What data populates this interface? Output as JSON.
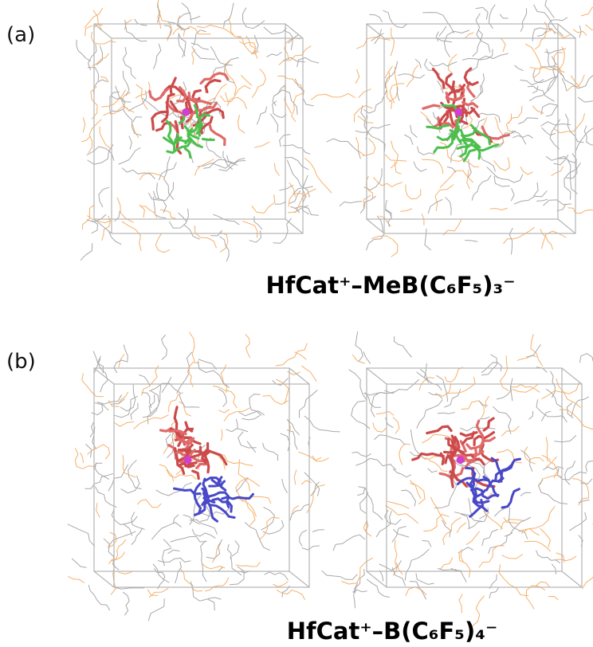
{
  "panels": [
    {
      "label": "(a)",
      "caption": "HfCat⁺–MeB(C₆F₅)₃⁻"
    },
    {
      "label": "(b)",
      "caption": "HfCat⁺–B(C₆F₅)₄⁻"
    }
  ]
}
